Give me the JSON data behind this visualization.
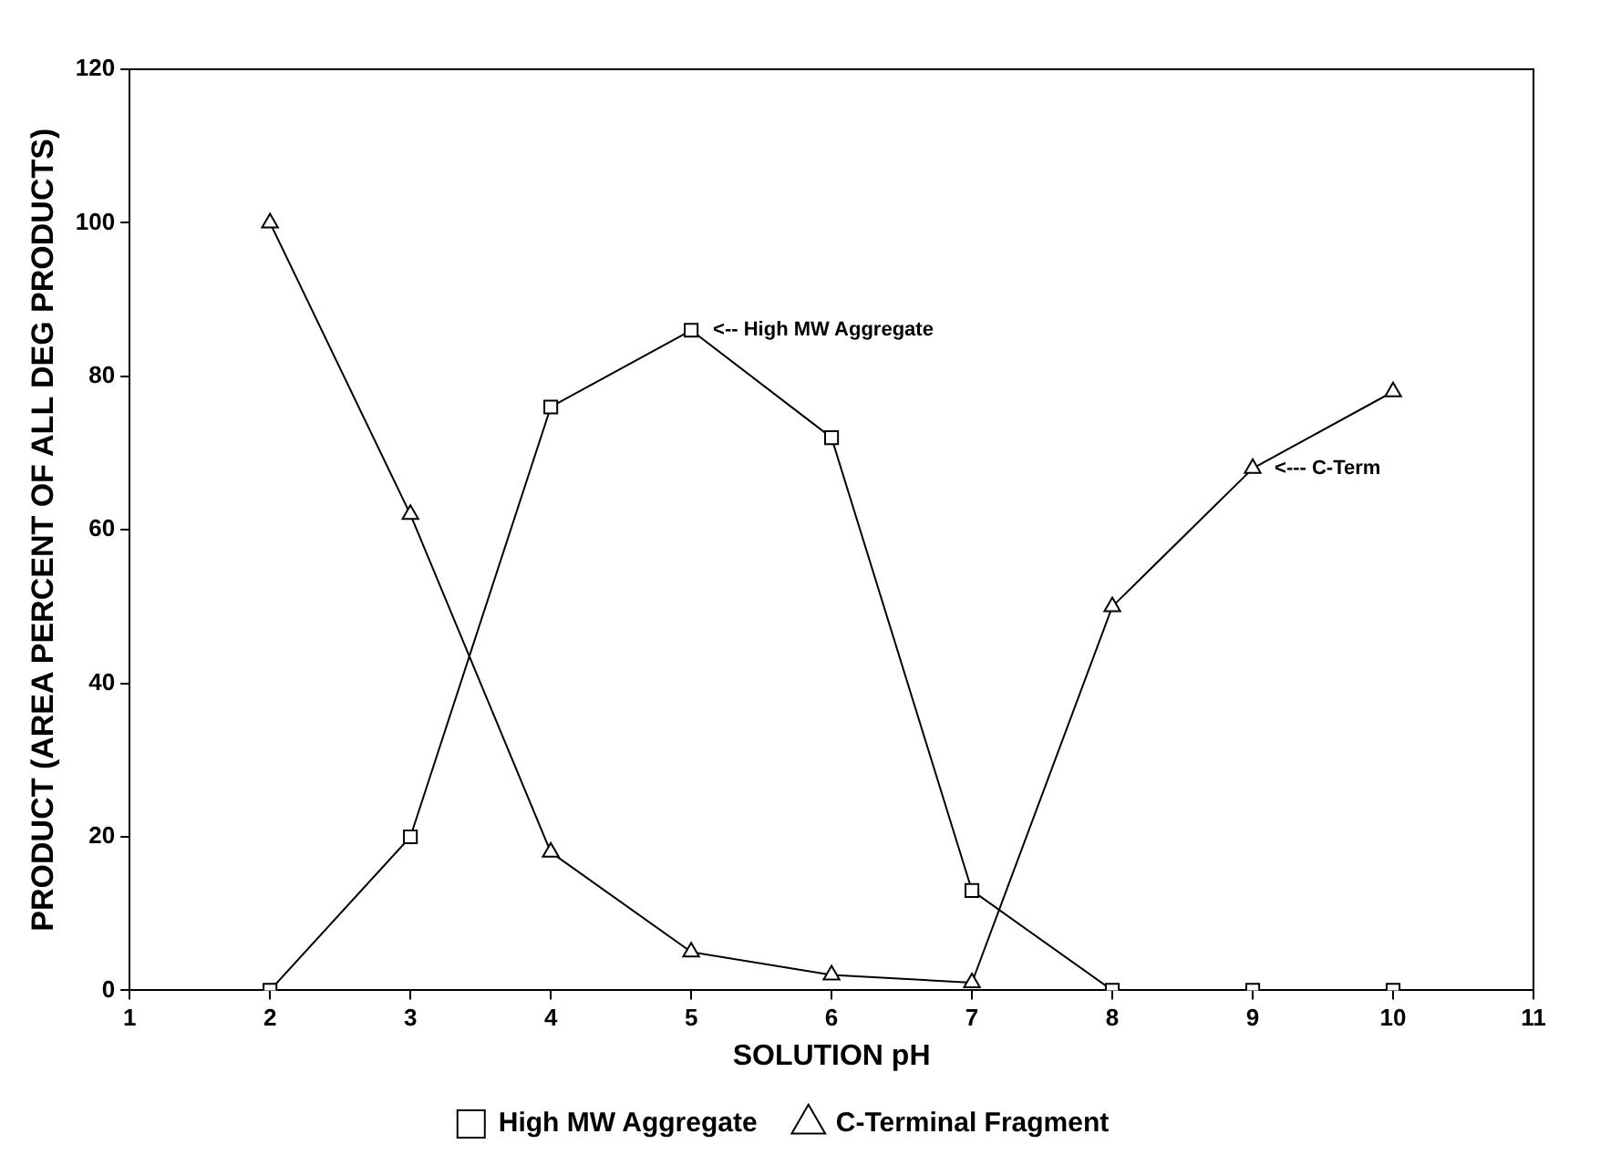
{
  "chart_data": {
    "type": "line",
    "xlabel": "SOLUTION pH",
    "ylabel": "PRODUCT (AREA PERCENT OF ALL DEG PRODUCTS)",
    "x": [
      2,
      3,
      4,
      5,
      6,
      7,
      8,
      9,
      10
    ],
    "series": [
      {
        "name": "High MW Aggregate",
        "color": "#000000",
        "marker": "square",
        "values": [
          0,
          20,
          76,
          86,
          72,
          13,
          0,
          0,
          0
        ]
      },
      {
        "name": "C-Terminal Fragment",
        "color": "#000000",
        "marker": "triangle",
        "values": [
          100,
          62,
          18,
          5,
          2,
          1,
          50,
          68,
          78
        ]
      }
    ],
    "xlim": [
      1,
      11
    ],
    "xticks": [
      1,
      2,
      3,
      4,
      5,
      6,
      7,
      8,
      9,
      10,
      11
    ],
    "ylim": [
      0,
      120
    ],
    "yticks": [
      0,
      20,
      40,
      60,
      80,
      100,
      120
    ],
    "grid": false,
    "legend": "bottom",
    "line_style": "solid",
    "annotations": [
      {
        "text": "<-- High MW Aggregate",
        "x": 5,
        "y": 86
      },
      {
        "text": "<--- C-Term",
        "x": 9,
        "y": 68
      }
    ]
  }
}
